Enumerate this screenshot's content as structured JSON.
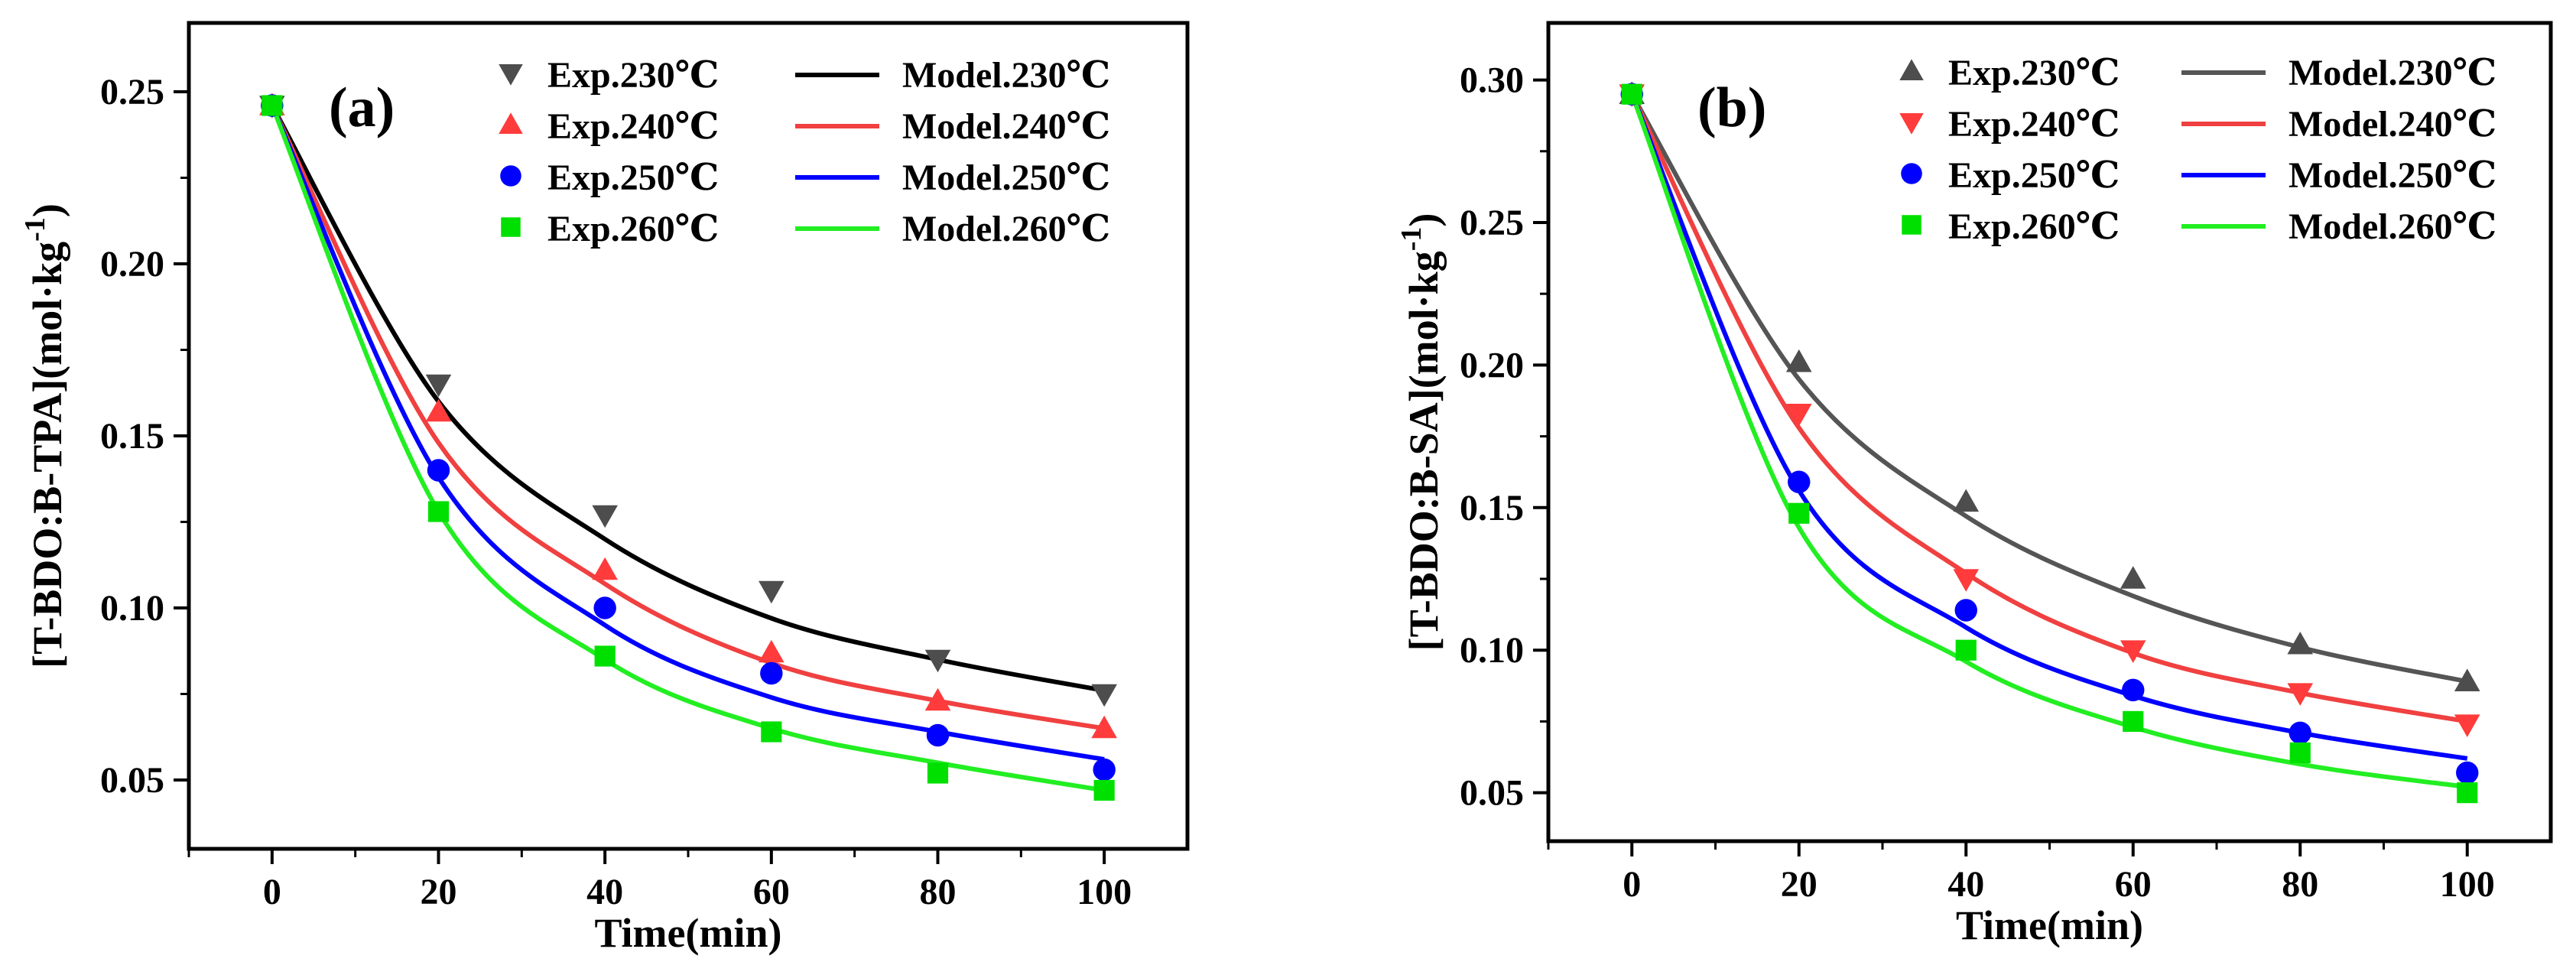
{
  "chart_data": [
    {
      "type": "line",
      "panel_label": "(a)",
      "xlabel": "Time(min)",
      "ylabel": "[T-BDO:B-TPA](mol·kg",
      "ylabel_sup": "-1",
      "ylabel_end": ")",
      "xlim": [
        -10,
        110
      ],
      "ylim": [
        0.03,
        0.27
      ],
      "xticks": [
        0,
        20,
        40,
        60,
        80,
        100
      ],
      "xtick_labels": [
        "0",
        "20",
        "40",
        "60",
        "80",
        "100"
      ],
      "yticks": [
        0.05,
        0.1,
        0.15,
        0.2,
        0.25
      ],
      "ytick_labels": [
        "0.05",
        "0.10",
        "0.15",
        "0.20",
        "0.25"
      ],
      "legend_position": "top-right",
      "x": [
        0,
        20,
        40,
        60,
        80,
        100
      ],
      "series": [
        {
          "name": "Exp.230℃",
          "model_name": "Model.230℃",
          "color": "#4d4d4d",
          "model_color": "#000000",
          "marker": "triangle-down",
          "values": [
            0.246,
            0.165,
            0.127,
            0.105,
            0.085,
            0.075
          ],
          "model": [
            0.246,
            0.16,
            0.12,
            0.097,
            0.085,
            0.076
          ]
        },
        {
          "name": "Exp.240℃",
          "model_name": "Model.240℃",
          "color": "#ff3b3b",
          "model_color": "#f04040",
          "marker": "triangle-up",
          "values": [
            0.246,
            0.157,
            0.111,
            0.087,
            0.073,
            0.065
          ],
          "model": [
            0.246,
            0.148,
            0.107,
            0.084,
            0.073,
            0.065
          ]
        },
        {
          "name": "Exp.250℃",
          "model_name": "Model.250℃",
          "color": "#0000ff",
          "model_color": "#0000ff",
          "marker": "circle",
          "values": [
            0.246,
            0.14,
            0.1,
            0.081,
            0.063,
            0.053
          ],
          "model": [
            0.246,
            0.138,
            0.095,
            0.074,
            0.064,
            0.056
          ]
        },
        {
          "name": "Exp.260℃",
          "model_name": "Model.260℃",
          "color": "#00e000",
          "model_color": "#22ee22",
          "marker": "square",
          "values": [
            0.246,
            0.128,
            0.086,
            0.064,
            0.052,
            0.047
          ],
          "model": [
            0.246,
            0.128,
            0.085,
            0.065,
            0.055,
            0.047
          ]
        }
      ]
    },
    {
      "type": "line",
      "panel_label": "(b)",
      "xlabel": "Time(min)",
      "ylabel": "[T-BDO:B-SA](mol·kg",
      "ylabel_sup": "-1",
      "ylabel_end": ")",
      "xlim": [
        -10,
        110
      ],
      "ylim": [
        0.033,
        0.32
      ],
      "xticks": [
        0,
        20,
        40,
        60,
        80,
        100
      ],
      "xtick_labels": [
        "0",
        "20",
        "40",
        "60",
        "80",
        "100"
      ],
      "yticks": [
        0.05,
        0.1,
        0.15,
        0.2,
        0.25,
        0.3
      ],
      "ytick_labels": [
        "0.05",
        "0.10",
        "0.15",
        "0.20",
        "0.25",
        "0.30"
      ],
      "legend_position": "top-right",
      "x": [
        0,
        20,
        40,
        60,
        80,
        100
      ],
      "series": [
        {
          "name": "Exp.230℃",
          "model_name": "Model.230℃",
          "color": "#4d4d4d",
          "model_color": "#555555",
          "marker": "triangle-up",
          "values": [
            0.295,
            0.201,
            0.152,
            0.125,
            0.102,
            0.089
          ],
          "model": [
            0.295,
            0.195,
            0.147,
            0.119,
            0.101,
            0.089
          ]
        },
        {
          "name": "Exp.240℃",
          "model_name": "Model.240℃",
          "color": "#ff3b3b",
          "model_color": "#f04040",
          "marker": "triangle-down",
          "values": [
            0.295,
            0.183,
            0.125,
            0.1,
            0.085,
            0.074
          ],
          "model": [
            0.295,
            0.178,
            0.127,
            0.099,
            0.085,
            0.075
          ]
        },
        {
          "name": "Exp.250℃",
          "model_name": "Model.250℃",
          "color": "#0000ff",
          "model_color": "#0000ff",
          "marker": "circle",
          "values": [
            0.295,
            0.159,
            0.114,
            0.086,
            0.071,
            0.057
          ],
          "model": [
            0.295,
            0.156,
            0.108,
            0.084,
            0.071,
            0.062
          ]
        },
        {
          "name": "Exp.260℃",
          "model_name": "Model.260℃",
          "color": "#00e000",
          "model_color": "#22ee22",
          "marker": "square",
          "values": [
            0.295,
            0.148,
            0.1,
            0.075,
            0.064,
            0.05
          ],
          "model": [
            0.295,
            0.143,
            0.096,
            0.073,
            0.06,
            0.052
          ]
        }
      ]
    }
  ]
}
